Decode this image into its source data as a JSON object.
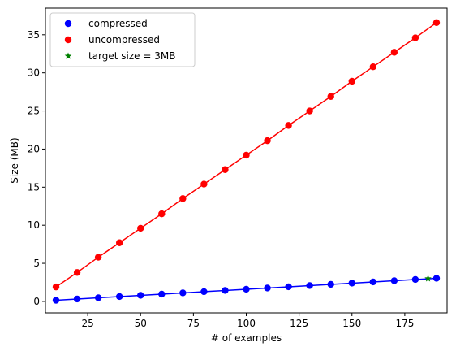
{
  "chart_data": {
    "type": "line",
    "xlabel": "# of examples",
    "ylabel": "Size (MB)",
    "xlim": [
      5,
      195
    ],
    "ylim": [
      -1.5,
      38.5
    ],
    "xticks": [
      25,
      50,
      75,
      100,
      125,
      150,
      175
    ],
    "yticks": [
      0,
      5,
      10,
      15,
      20,
      25,
      30,
      35
    ],
    "grid": false,
    "legend_position": "top-left",
    "x": [
      10,
      20,
      30,
      40,
      50,
      60,
      70,
      80,
      90,
      100,
      110,
      120,
      130,
      140,
      150,
      160,
      170,
      180,
      190
    ],
    "series": [
      {
        "name": "compressed",
        "color": "#0000ff",
        "marker": "circle",
        "line": true,
        "values": [
          0.15,
          0.32,
          0.48,
          0.64,
          0.8,
          0.96,
          1.12,
          1.28,
          1.44,
          1.6,
          1.76,
          1.92,
          2.08,
          2.24,
          2.4,
          2.56,
          2.72,
          2.88,
          3.04
        ]
      },
      {
        "name": "uncompressed",
        "color": "#ff0000",
        "marker": "circle",
        "line": true,
        "values": [
          1.9,
          3.8,
          5.8,
          7.7,
          9.6,
          11.5,
          13.5,
          15.4,
          17.3,
          19.2,
          21.1,
          23.1,
          25.0,
          26.9,
          28.9,
          30.8,
          32.7,
          34.6,
          36.6
        ]
      },
      {
        "name": "target size = 3MB",
        "color": "#008000",
        "marker": "star",
        "line": false,
        "points": [
          {
            "x": 186,
            "y": 3.0
          }
        ]
      }
    ]
  }
}
